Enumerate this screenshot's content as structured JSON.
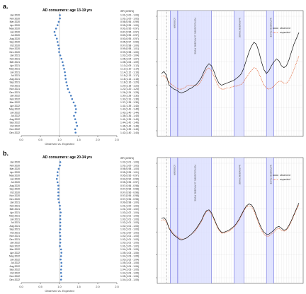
{
  "panels": [
    {
      "label": "a.",
      "title": "AD consumers: age 13-19 yrs",
      "irr_header": "IRR (CI95%)",
      "forest": {
        "xlabel": "Observed vs. Expected",
        "xticks": [
          "0.0",
          "0.5",
          "1.0",
          "1.5",
          "2.0",
          "2.5"
        ],
        "xlim": [
          0,
          2.5
        ],
        "months": [
          "Jan 2020",
          "Feb 2020",
          "Mar 2020",
          "Apr 2020",
          "May 2020",
          "Jun 2020",
          "Jul 2020",
          "Aug 2020",
          "Sep 2020",
          "Oct 2020",
          "Nov 2020",
          "Dec 2020",
          "Jan 2021",
          "Feb 2021",
          "Mar 2021",
          "Apr 2021",
          "May 2021",
          "Jun 2021",
          "Jul 2021",
          "Aug 2021",
          "Sep 2021",
          "Oct 2021",
          "Nov 2021",
          "Dec 2021",
          "Jan 2022",
          "Feb 2022",
          "Mar 2022",
          "Apr 2022",
          "May 2022",
          "Jun 2022",
          "Jul 2022",
          "Aug 2022",
          "Sep 2022",
          "Oct 2022",
          "Nov 2022",
          "Dec 2022"
        ],
        "values": [
          1.01,
          1.01,
          0.98,
          0.95,
          0.91,
          0.87,
          0.89,
          0.93,
          0.95,
          0.97,
          0.99,
          0.99,
          1.02,
          1.05,
          1.08,
          1.1,
          1.12,
          1.14,
          1.15,
          1.16,
          1.18,
          1.2,
          1.22,
          1.26,
          1.3,
          1.33,
          1.37,
          1.41,
          1.43,
          1.42,
          1.38,
          1.41,
          1.44,
          1.46,
          1.41,
          1.42
        ],
        "irr": [
          "1.01 (1.00 - 1.03)",
          "1.01 (1.00 - 1.02)",
          "0.98 (0.96 - 0.99)",
          "0.95 (0.95 - 1.00)",
          "0.91 (0.95 - 0.97)",
          "0.87 (0.95 - 0.97)",
          "0.89 (0.95 - 0.97)",
          "0.93 (0.95 - 0.97)",
          "0.95 (0.97 - 0.99)",
          "0.97 (0.98 - 1.00)",
          "0.99 (0.98 - 1.01)",
          "0.99 (0.98 - 1.00)",
          "1.02 (1.00 - 1.04)",
          "1.05 (1.04 - 1.07)",
          "1.08 (1.06 - 1.09)",
          "1.10 (1.09 - 1.12)",
          "1.12 (1.10 - 1.14)",
          "1.14 (1.12 - 1.16)",
          "1.15 (1.13 - 1.17)",
          "1.16 (1.14 - 1.18)",
          "1.18 (1.16 - 1.20)",
          "1.20 (1.18 - 1.22)",
          "1.22 (1.20 - 1.24)",
          "1.26 (1.24 - 1.28)",
          "1.30 (1.28 - 1.32)",
          "1.33 (1.31 - 1.35)",
          "1.37 (1.35 - 1.39)",
          "1.41 (1.39 - 1.43)",
          "1.43 (1.41 - 1.45)",
          "1.42 (1.40 - 1.44)",
          "1.38 (1.36 - 1.40)",
          "1.41 (1.39 - 1.43)",
          "1.44 (1.42 - 1.46)",
          "1.46 (1.44 - 1.48)",
          "1.41 (1.39 - 1.43)",
          "1.42 (1.40 - 1.44)"
        ]
      },
      "ts": {
        "legend": [
          "observed",
          "expected"
        ],
        "phases": [
          "LOCKDOWN",
          "POST-LOCKDOWN: 1st PANDEMIC PHASE",
          "2nd PANDEMIC PHASE",
          "3rd PANDEMIC PHASE"
        ],
        "observed": [
          0.5,
          0.52,
          0.48,
          0.38,
          0.36,
          0.34,
          0.33,
          0.31,
          0.3,
          0.31,
          0.32,
          0.34,
          0.35,
          0.37,
          0.39,
          0.42,
          0.46,
          0.52,
          0.57,
          0.6,
          0.58,
          0.52,
          0.45,
          0.4,
          0.38,
          0.39,
          0.4,
          0.41,
          0.42,
          0.43,
          0.45,
          0.47,
          0.5,
          0.56,
          0.64,
          0.72,
          0.78,
          0.82,
          0.8,
          0.72,
          0.62,
          0.54,
          0.5,
          0.53,
          0.58,
          0.62,
          0.65,
          0.63,
          0.58,
          0.56,
          0.58,
          0.64,
          0.72,
          0.8,
          0.86,
          0.92
        ],
        "expected": [
          0.47,
          0.48,
          0.45,
          0.41,
          0.39,
          0.37,
          0.35,
          0.34,
          0.34,
          0.35,
          0.37,
          0.38,
          0.38,
          0.38,
          0.37,
          0.39,
          0.43,
          0.49,
          0.54,
          0.56,
          0.53,
          0.47,
          0.41,
          0.36,
          0.34,
          0.34,
          0.35,
          0.35,
          0.36,
          0.37,
          0.37,
          0.38,
          0.39,
          0.42,
          0.46,
          0.5,
          0.53,
          0.56,
          0.55,
          0.5,
          0.44,
          0.38,
          0.35,
          0.34,
          0.35,
          0.37,
          0.4,
          0.42,
          0.42,
          0.4,
          0.4,
          0.43,
          0.48,
          0.54,
          0.61,
          0.68
        ]
      }
    },
    {
      "label": "b.",
      "title": "AD consumers: age 20-34 yrs",
      "irr_header": "IRR (CI95%)",
      "forest": {
        "xlabel": "Observed vs. Expected",
        "xticks": [
          "0.0",
          "0.5",
          "1.0",
          "1.5",
          "2.0",
          "2.5"
        ],
        "xlim": [
          0,
          2.5
        ],
        "months": [
          "Jan 2020",
          "Feb 2020",
          "Mar 2020",
          "Apr 2020",
          "May 2020",
          "Jun 2020",
          "Jul 2020",
          "Aug 2020",
          "Sep 2020",
          "Oct 2020",
          "Nov 2020",
          "Dec 2020",
          "Jan 2021",
          "Feb 2021",
          "Mar 2021",
          "Apr 2021",
          "May 2021",
          "Jun 2021",
          "Jul 2021",
          "Aug 2021",
          "Sep 2021",
          "Oct 2021",
          "Nov 2021",
          "Dec 2021",
          "Jan 2022",
          "Feb 2022",
          "Mar 2022",
          "Apr 2022",
          "May 2022",
          "Jun 2022",
          "Jul 2022",
          "Aug 2022",
          "Sep 2022",
          "Oct 2022",
          "Nov 2022",
          "Dec 2022"
        ],
        "values": [
          1.02,
          1.01,
          0.98,
          0.95,
          0.95,
          0.93,
          0.95,
          0.97,
          0.97,
          0.97,
          0.97,
          0.97,
          0.99,
          1.01,
          1.01,
          1.03,
          1.02,
          1.02,
          1.02,
          1.02,
          1.02,
          1.01,
          1.02,
          1.02,
          1.02,
          1.01,
          1.04,
          1.05,
          1.04,
          1.03,
          1.05,
          1.05,
          1.04,
          1.04,
          1.05,
          1.04
        ],
        "irr": [
          "1.02 (1.01 - 1.03)",
          "1.01 (1.00 - 1.02)",
          "0.98 (0.98 - 1.00)",
          "0.95 (0.95 - 1.01)",
          "0.95 (0.95 - 0.97)",
          "0.93 (0.92 - 0.95)",
          "0.95 (0.95 - 0.97)",
          "0.97 (0.96 - 0.98)",
          "0.97 (0.96 - 0.98)",
          "0.97 (0.96 - 0.98)",
          "0.97 (0.96 - 0.98)",
          "0.97 (0.96 - 0.98)",
          "0.99 (0.98 - 1.00)",
          "1.01 (1.00 - 1.02)",
          "1.01 (1.00 - 1.02)",
          "1.03 (1.02 - 1.04)",
          "1.02 (1.01 - 1.03)",
          "1.02 (1.01 - 1.03)",
          "1.02 (1.01 - 1.03)",
          "1.02 (1.01 - 1.03)",
          "1.02 (1.01 - 1.03)",
          "1.01 (1.00 - 1.02)",
          "1.02 (1.01 - 1.03)",
          "1.02 (1.01 - 1.03)",
          "1.02 (1.01 - 1.03)",
          "1.01 (1.00 - 1.02)",
          "1.04 (1.03 - 1.05)",
          "1.05 (1.04 - 1.06)",
          "1.04 (1.03 - 1.05)",
          "1.03 (1.02 - 1.04)",
          "1.05 (1.04 - 1.06)",
          "1.05 (1.04 - 1.06)",
          "1.04 (1.03 - 1.05)",
          "1.04 (1.03 - 1.05)",
          "1.05 (1.04 - 1.06)",
          "1.04 (1.03 - 1.05)"
        ]
      },
      "ts": {
        "legend": [
          "observed",
          "expected"
        ],
        "phases": [
          "LOCKDOWN",
          "POST-LOCKDOWN: 1st PANDEMIC PHASE",
          "2nd PANDEMIC PHASE",
          "3rd PANDEMIC PHASE"
        ],
        "observed": [
          0.52,
          0.53,
          0.5,
          0.42,
          0.38,
          0.35,
          0.33,
          0.31,
          0.3,
          0.31,
          0.32,
          0.34,
          0.36,
          0.39,
          0.42,
          0.46,
          0.5,
          0.56,
          0.6,
          0.61,
          0.58,
          0.52,
          0.46,
          0.41,
          0.38,
          0.38,
          0.39,
          0.4,
          0.42,
          0.44,
          0.47,
          0.51,
          0.56,
          0.61,
          0.65,
          0.67,
          0.66,
          0.62,
          0.55,
          0.48,
          0.42,
          0.38,
          0.36,
          0.36,
          0.38,
          0.4,
          0.43,
          0.44,
          0.42,
          0.4,
          0.41,
          0.45,
          0.5,
          0.56,
          0.62,
          0.68
        ],
        "expected": [
          0.5,
          0.51,
          0.48,
          0.43,
          0.39,
          0.36,
          0.34,
          0.32,
          0.31,
          0.31,
          0.32,
          0.34,
          0.36,
          0.38,
          0.41,
          0.45,
          0.49,
          0.55,
          0.59,
          0.6,
          0.57,
          0.51,
          0.45,
          0.4,
          0.37,
          0.37,
          0.38,
          0.39,
          0.41,
          0.43,
          0.46,
          0.5,
          0.55,
          0.6,
          0.64,
          0.65,
          0.64,
          0.6,
          0.53,
          0.46,
          0.4,
          0.36,
          0.34,
          0.34,
          0.36,
          0.38,
          0.41,
          0.42,
          0.4,
          0.39,
          0.4,
          0.44,
          0.49,
          0.55,
          0.61,
          0.66
        ]
      }
    }
  ],
  "colors": {
    "observed": "#111111",
    "expected": "#e06030",
    "marker": "#4a7fc1",
    "band": "#d8dcff",
    "band_edge": "#5a5ad8",
    "grid": "#d8d8d8"
  },
  "chart_data": [
    {
      "type": "scatter",
      "title": "AD consumers: age 13-19 yrs",
      "xlabel": "Observed vs. Expected",
      "xlim": [
        0,
        2.5
      ],
      "categories": [
        "Jan 2020",
        "Feb 2020",
        "Mar 2020",
        "Apr 2020",
        "May 2020",
        "Jun 2020",
        "Jul 2020",
        "Aug 2020",
        "Sep 2020",
        "Oct 2020",
        "Nov 2020",
        "Dec 2020",
        "Jan 2021",
        "Feb 2021",
        "Mar 2021",
        "Apr 2021",
        "May 2021",
        "Jun 2021",
        "Jul 2021",
        "Aug 2021",
        "Sep 2021",
        "Oct 2021",
        "Nov 2021",
        "Dec 2021",
        "Jan 2022",
        "Feb 2022",
        "Mar 2022",
        "Apr 2022",
        "May 2022",
        "Jun 2022",
        "Jul 2022",
        "Aug 2022",
        "Sep 2022",
        "Oct 2022",
        "Nov 2022",
        "Dec 2022"
      ],
      "values": [
        1.01,
        1.01,
        0.98,
        0.95,
        0.91,
        0.87,
        0.89,
        0.93,
        0.95,
        0.97,
        0.99,
        0.99,
        1.02,
        1.05,
        1.08,
        1.1,
        1.12,
        1.14,
        1.15,
        1.16,
        1.18,
        1.2,
        1.22,
        1.26,
        1.3,
        1.33,
        1.37,
        1.41,
        1.43,
        1.42,
        1.38,
        1.41,
        1.44,
        1.46,
        1.41,
        1.42
      ]
    },
    {
      "type": "line",
      "legend": [
        "observed",
        "expected"
      ]
    },
    {
      "type": "scatter",
      "title": "AD consumers: age 20-34 yrs",
      "xlabel": "Observed vs. Expected",
      "xlim": [
        0,
        2.5
      ]
    },
    {
      "type": "line",
      "legend": [
        "observed",
        "expected"
      ]
    }
  ]
}
